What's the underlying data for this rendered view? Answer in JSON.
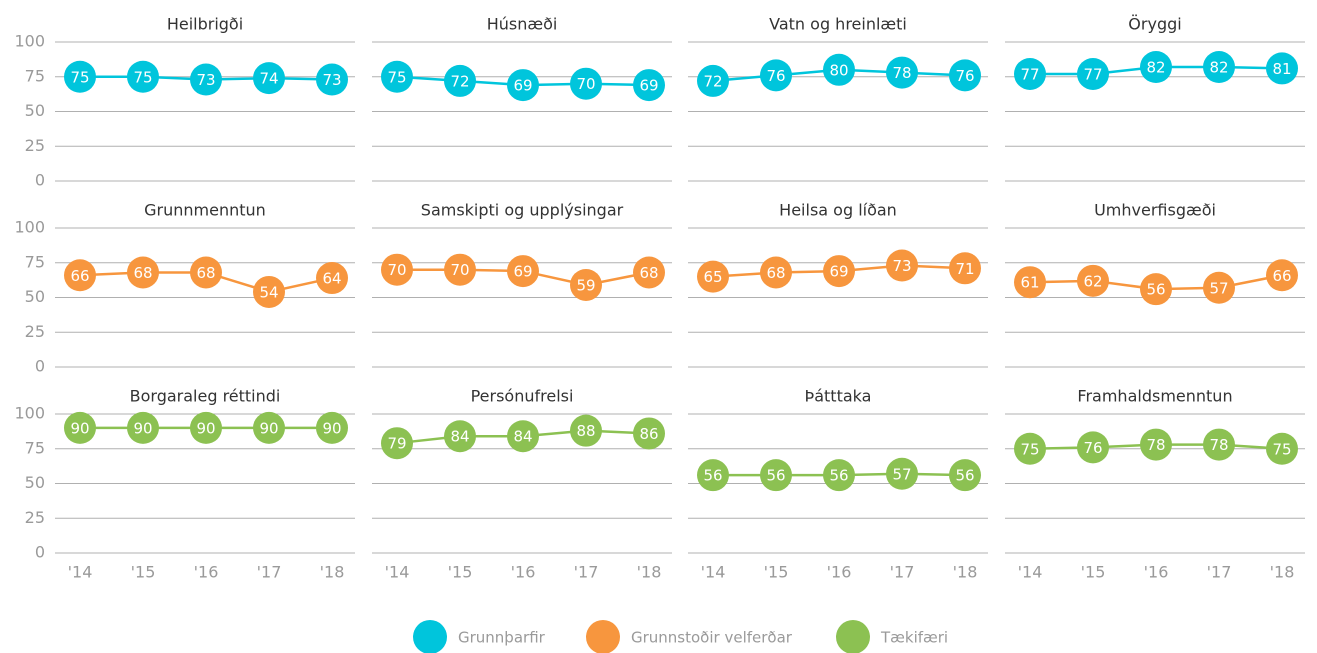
{
  "chart_data": [
    {
      "type": "line",
      "title": "Heilbrigði",
      "categories": [
        "'14",
        "'15",
        "'16",
        "'17",
        "'18"
      ],
      "series": [
        {
          "name": "Grunnþarfir",
          "color": "#00c5dc",
          "values": [
            75,
            75,
            73,
            74,
            73
          ]
        }
      ],
      "ylim": [
        0,
        100
      ],
      "yticks": [
        0,
        25,
        50,
        75,
        100
      ],
      "grid": true
    },
    {
      "type": "line",
      "title": "Húsnæði",
      "categories": [
        "'14",
        "'15",
        "'16",
        "'17",
        "'18"
      ],
      "series": [
        {
          "name": "Grunnþarfir",
          "color": "#00c5dc",
          "values": [
            75,
            72,
            69,
            70,
            69
          ]
        }
      ],
      "ylim": [
        0,
        100
      ],
      "yticks": [
        0,
        25,
        50,
        75,
        100
      ],
      "grid": true
    },
    {
      "type": "line",
      "title": "Vatn og hreinlæti",
      "categories": [
        "'14",
        "'15",
        "'16",
        "'17",
        "'18"
      ],
      "series": [
        {
          "name": "Grunnþarfir",
          "color": "#00c5dc",
          "values": [
            72,
            76,
            80,
            78,
            76
          ]
        }
      ],
      "ylim": [
        0,
        100
      ],
      "yticks": [
        0,
        25,
        50,
        75,
        100
      ],
      "grid": true
    },
    {
      "type": "line",
      "title": "Öryggi",
      "categories": [
        "'14",
        "'15",
        "'16",
        "'17",
        "'18"
      ],
      "series": [
        {
          "name": "Grunnþarfir",
          "color": "#00c5dc",
          "values": [
            77,
            77,
            82,
            82,
            81
          ]
        }
      ],
      "ylim": [
        0,
        100
      ],
      "yticks": [
        0,
        25,
        50,
        75,
        100
      ],
      "grid": true
    },
    {
      "type": "line",
      "title": "Grunnmenntun",
      "categories": [
        "'14",
        "'15",
        "'16",
        "'17",
        "'18"
      ],
      "series": [
        {
          "name": "Grunnstoðir velferðar",
          "color": "#f7963e",
          "values": [
            66,
            68,
            68,
            54,
            64
          ]
        }
      ],
      "ylim": [
        0,
        100
      ],
      "yticks": [
        0,
        25,
        50,
        75,
        100
      ],
      "grid": true
    },
    {
      "type": "line",
      "title": "Samskipti og upplýsingar",
      "categories": [
        "'14",
        "'15",
        "'16",
        "'17",
        "'18"
      ],
      "series": [
        {
          "name": "Grunnstoðir velferðar",
          "color": "#f7963e",
          "values": [
            70,
            70,
            69,
            59,
            68
          ]
        }
      ],
      "ylim": [
        0,
        100
      ],
      "yticks": [
        0,
        25,
        50,
        75,
        100
      ],
      "grid": true
    },
    {
      "type": "line",
      "title": "Heilsa og líðan",
      "categories": [
        "'14",
        "'15",
        "'16",
        "'17",
        "'18"
      ],
      "series": [
        {
          "name": "Grunnstoðir velferðar",
          "color": "#f7963e",
          "values": [
            65,
            68,
            69,
            73,
            71
          ]
        }
      ],
      "ylim": [
        0,
        100
      ],
      "yticks": [
        0,
        25,
        50,
        75,
        100
      ],
      "grid": true
    },
    {
      "type": "line",
      "title": "Umhverfisgæði",
      "categories": [
        "'14",
        "'15",
        "'16",
        "'17",
        "'18"
      ],
      "series": [
        {
          "name": "Grunnstoðir velferðar",
          "color": "#f7963e",
          "values": [
            61,
            62,
            56,
            57,
            66
          ]
        }
      ],
      "ylim": [
        0,
        100
      ],
      "yticks": [
        0,
        25,
        50,
        75,
        100
      ],
      "grid": true
    },
    {
      "type": "line",
      "title": "Borgaraleg réttindi",
      "categories": [
        "'14",
        "'15",
        "'16",
        "'17",
        "'18"
      ],
      "series": [
        {
          "name": "Tækifæri",
          "color": "#8cc152",
          "values": [
            90,
            90,
            90,
            90,
            90
          ]
        }
      ],
      "ylim": [
        0,
        100
      ],
      "yticks": [
        0,
        25,
        50,
        75,
        100
      ],
      "grid": true
    },
    {
      "type": "line",
      "title": "Persónufrelsi",
      "categories": [
        "'14",
        "'15",
        "'16",
        "'17",
        "'18"
      ],
      "series": [
        {
          "name": "Tækifæri",
          "color": "#8cc152",
          "values": [
            79,
            84,
            84,
            88,
            86
          ]
        }
      ],
      "ylim": [
        0,
        100
      ],
      "yticks": [
        0,
        25,
        50,
        75,
        100
      ],
      "grid": true
    },
    {
      "type": "line",
      "title": "Þátttaka",
      "categories": [
        "'14",
        "'15",
        "'16",
        "'17",
        "'18"
      ],
      "series": [
        {
          "name": "Tækifæri",
          "color": "#8cc152",
          "values": [
            56,
            56,
            56,
            57,
            56
          ]
        }
      ],
      "ylim": [
        0,
        100
      ],
      "yticks": [
        0,
        25,
        50,
        75,
        100
      ],
      "grid": true
    },
    {
      "type": "line",
      "title": "Framhaldsmenntun",
      "categories": [
        "'14",
        "'15",
        "'16",
        "'17",
        "'18"
      ],
      "series": [
        {
          "name": "Tækifæri",
          "color": "#8cc152",
          "values": [
            75,
            76,
            78,
            78,
            75
          ]
        }
      ],
      "ylim": [
        0,
        100
      ],
      "yticks": [
        0,
        25,
        50,
        75,
        100
      ],
      "grid": true
    }
  ]
}
